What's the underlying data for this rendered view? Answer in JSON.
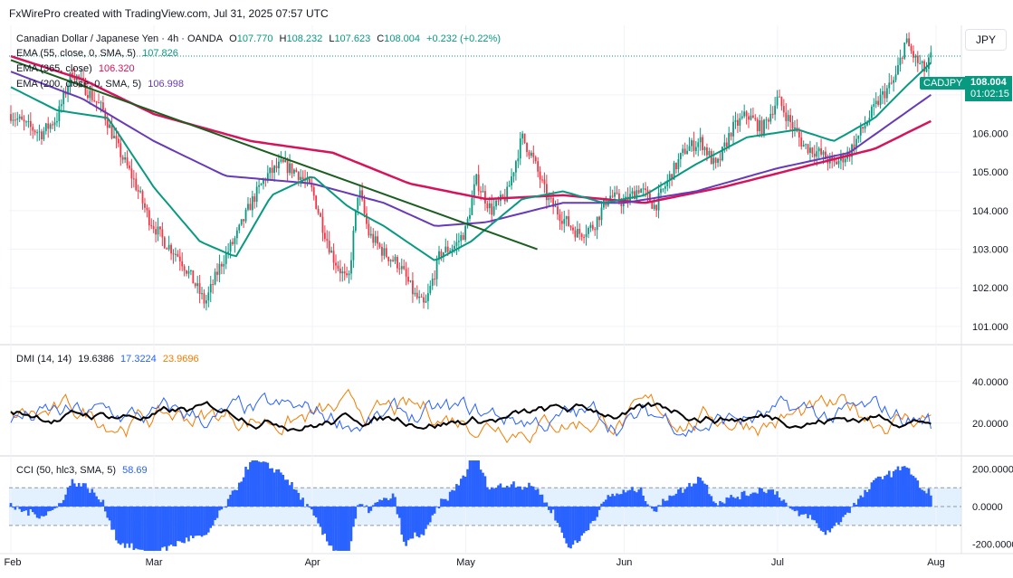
{
  "header": {
    "credit": "FxWirePro created with TradingView.com, Jul 31, 2025 07:57 UTC"
  },
  "currency_button": "JPY",
  "legend": {
    "main": {
      "symbol": "Canadian Dollar / Japanese Yen · 4h · OANDA",
      "o_label": "O",
      "o": "107.770",
      "h_label": "H",
      "h": "108.232",
      "l_label": "L",
      "l": "107.623",
      "c_label": "C",
      "c": "108.004",
      "chg": "+0.232 (+0.22%)"
    },
    "ema55": {
      "label": "EMA (55, close, 0, SMA, 5)",
      "value": "107.826",
      "color": "#089981"
    },
    "ema365": {
      "label": "EMA (365, close)",
      "value": "106.320",
      "color": "#d6145c"
    },
    "ema200": {
      "label": "EMA (200, close, 0, SMA, 5)",
      "value": "106.998",
      "color": "#673ab7"
    },
    "dmi": {
      "label": "DMI (14, 14)",
      "v1": "19.6386",
      "v2": "17.3224",
      "v3": "23.9696"
    },
    "cci": {
      "label": "CCI (50, hlc3, SMA, 5)",
      "value": "58.69"
    }
  },
  "price_badge": {
    "symbol": "CADJPY",
    "price": "108.004",
    "countdown": "01:02:15"
  },
  "colors": {
    "up": "#089981",
    "down": "#f23645",
    "ema55": "#089981",
    "ema200": "#673ab7",
    "ema365": "#d6145c",
    "trendline": "#1b5e20",
    "adx": "#000000",
    "diplus": "#2962ff",
    "diminus": "#f57c00",
    "cci": "#2962ff"
  },
  "chart_data": [
    {
      "type": "candlestick",
      "title": "Canadian Dollar / Japanese Yen · 4h · OANDA",
      "x_range": [
        "2025-02-01",
        "2025-08-01"
      ],
      "x_ticks": [
        "Feb",
        "Mar",
        "Apr",
        "May",
        "Jun",
        "Jul",
        "Aug"
      ],
      "y_ticks": [
        "107.000",
        "106.000",
        "105.000",
        "104.000",
        "103.000",
        "102.000",
        "101.000"
      ],
      "ylim": [
        100.6,
        108.8
      ],
      "close_path": [
        [
          "2025-02-01",
          106.5
        ],
        [
          "2025-02-04",
          106.2
        ],
        [
          "2025-02-07",
          106.0
        ],
        [
          "2025-02-10",
          106.4
        ],
        [
          "2025-02-13",
          107.6
        ],
        [
          "2025-02-16",
          107.1
        ],
        [
          "2025-02-19",
          106.6
        ],
        [
          "2025-02-22",
          105.6
        ],
        [
          "2025-02-25",
          104.8
        ],
        [
          "2025-02-28",
          103.8
        ],
        [
          "2025-03-03",
          103.2
        ],
        [
          "2025-03-06",
          102.8
        ],
        [
          "2025-03-09",
          102.1
        ],
        [
          "2025-03-11",
          101.6
        ],
        [
          "2025-03-14",
          102.6
        ],
        [
          "2025-03-17",
          103.3
        ],
        [
          "2025-03-20",
          104.2
        ],
        [
          "2025-03-23",
          104.9
        ],
        [
          "2025-03-26",
          105.2
        ],
        [
          "2025-03-29",
          105.0
        ],
        [
          "2025-04-01",
          104.5
        ],
        [
          "2025-04-03",
          103.6
        ],
        [
          "2025-04-05",
          102.8
        ],
        [
          "2025-04-08",
          102.1
        ],
        [
          "2025-04-10",
          104.6
        ],
        [
          "2025-04-12",
          103.4
        ],
        [
          "2025-04-15",
          102.9
        ],
        [
          "2025-04-18",
          102.6
        ],
        [
          "2025-04-21",
          101.8
        ],
        [
          "2025-04-23",
          101.5
        ],
        [
          "2025-04-26",
          102.9
        ],
        [
          "2025-04-29",
          103.1
        ],
        [
          "2025-05-01",
          103.5
        ],
        [
          "2025-05-03",
          104.8
        ],
        [
          "2025-05-06",
          104.0
        ],
        [
          "2025-05-09",
          104.4
        ],
        [
          "2025-05-12",
          105.9
        ],
        [
          "2025-05-14",
          105.4
        ],
        [
          "2025-05-17",
          104.3
        ],
        [
          "2025-05-20",
          103.8
        ],
        [
          "2025-05-23",
          103.4
        ],
        [
          "2025-05-26",
          103.6
        ],
        [
          "2025-05-29",
          104.4
        ],
        [
          "2025-06-01",
          104.2
        ],
        [
          "2025-06-04",
          104.6
        ],
        [
          "2025-06-07",
          104.1
        ],
        [
          "2025-06-10",
          104.9
        ],
        [
          "2025-06-13",
          105.6
        ],
        [
          "2025-06-16",
          105.8
        ],
        [
          "2025-06-19",
          105.1
        ],
        [
          "2025-06-22",
          106.1
        ],
        [
          "2025-06-25",
          106.5
        ],
        [
          "2025-06-28",
          106.1
        ],
        [
          "2025-07-01",
          106.9
        ],
        [
          "2025-07-03",
          106.4
        ],
        [
          "2025-07-06",
          105.7
        ],
        [
          "2025-07-09",
          105.5
        ],
        [
          "2025-07-12",
          105.2
        ],
        [
          "2025-07-15",
          105.5
        ],
        [
          "2025-07-18",
          106.2
        ],
        [
          "2025-07-21",
          106.9
        ],
        [
          "2025-07-24",
          107.4
        ],
        [
          "2025-07-26",
          108.4
        ],
        [
          "2025-07-28",
          107.9
        ],
        [
          "2025-07-30",
          107.6
        ],
        [
          "2025-07-31",
          108.0
        ]
      ],
      "ema55_path": [
        [
          "2025-02-01",
          107.2
        ],
        [
          "2025-02-10",
          106.6
        ],
        [
          "2025-02-20",
          106.4
        ],
        [
          "2025-03-01",
          104.6
        ],
        [
          "2025-03-10",
          103.2
        ],
        [
          "2025-03-17",
          102.8
        ],
        [
          "2025-03-24",
          104.4
        ],
        [
          "2025-04-01",
          104.9
        ],
        [
          "2025-04-08",
          104.1
        ],
        [
          "2025-04-15",
          103.6
        ],
        [
          "2025-04-25",
          102.7
        ],
        [
          "2025-05-02",
          103.2
        ],
        [
          "2025-05-12",
          104.3
        ],
        [
          "2025-05-20",
          104.5
        ],
        [
          "2025-05-28",
          104.2
        ],
        [
          "2025-06-05",
          104.4
        ],
        [
          "2025-06-15",
          105.2
        ],
        [
          "2025-06-25",
          105.9
        ],
        [
          "2025-07-05",
          106.1
        ],
        [
          "2025-07-12",
          105.8
        ],
        [
          "2025-07-20",
          106.4
        ],
        [
          "2025-07-26",
          107.2
        ],
        [
          "2025-07-31",
          107.83
        ]
      ],
      "ema200_path": [
        [
          "2025-02-01",
          107.6
        ],
        [
          "2025-02-15",
          106.9
        ],
        [
          "2025-03-01",
          105.8
        ],
        [
          "2025-03-15",
          104.9
        ],
        [
          "2025-04-01",
          104.7
        ],
        [
          "2025-04-15",
          104.2
        ],
        [
          "2025-04-25",
          103.6
        ],
        [
          "2025-05-05",
          103.7
        ],
        [
          "2025-05-20",
          104.2
        ],
        [
          "2025-06-01",
          104.2
        ],
        [
          "2025-06-15",
          104.5
        ],
        [
          "2025-07-01",
          105.1
        ],
        [
          "2025-07-15",
          105.5
        ],
        [
          "2025-07-31",
          107.0
        ]
      ],
      "ema365_path": [
        [
          "2025-02-01",
          108.0
        ],
        [
          "2025-02-15",
          107.4
        ],
        [
          "2025-03-01",
          106.5
        ],
        [
          "2025-03-20",
          105.8
        ],
        [
          "2025-04-05",
          105.5
        ],
        [
          "2025-04-20",
          104.7
        ],
        [
          "2025-05-05",
          104.3
        ],
        [
          "2025-05-20",
          104.4
        ],
        [
          "2025-06-05",
          104.2
        ],
        [
          "2025-06-20",
          104.6
        ],
        [
          "2025-07-05",
          105.1
        ],
        [
          "2025-07-20",
          105.6
        ],
        [
          "2025-07-31",
          106.32
        ]
      ],
      "trendline": [
        [
          "2025-02-01",
          107.9
        ],
        [
          "2025-05-15",
          103.0
        ]
      ],
      "last": {
        "symbol": "CADJPY",
        "price": 108.004,
        "countdown": "01:02:15"
      }
    },
    {
      "type": "line",
      "title": "DMI (14, 14)",
      "y_ticks": [
        "40.0000",
        "20.0000"
      ],
      "ylim": [
        6,
        56
      ],
      "series": [
        {
          "name": "ADX",
          "last": 19.6386
        },
        {
          "name": "+DI",
          "last": 17.3224
        },
        {
          "name": "-DI",
          "last": 23.9696
        }
      ]
    },
    {
      "type": "bar",
      "title": "CCI (50, hlc3, SMA, 5)",
      "y_ticks": [
        "200.0000",
        "0.0000",
        "-200.0000"
      ],
      "ylim": [
        -240,
        250
      ],
      "band": [
        -100,
        100
      ],
      "last": 58.69
    }
  ]
}
